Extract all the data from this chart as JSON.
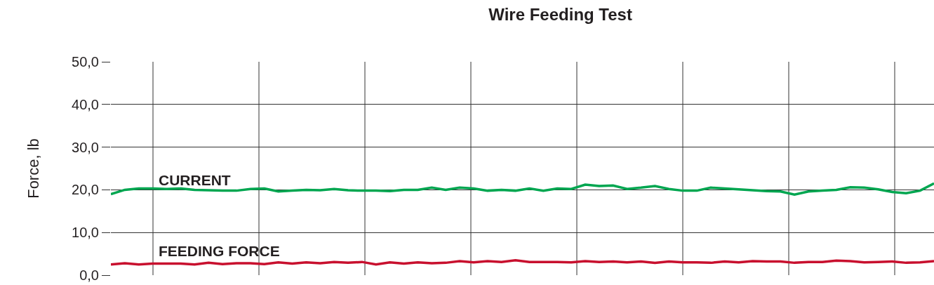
{
  "chart_data": {
    "type": "line",
    "title": "Wire Feeding Test",
    "ylabel": "Force, lb",
    "categories": [
      null,
      null,
      null,
      null,
      null,
      null,
      null,
      null,
      null,
      null,
      null,
      null,
      null,
      null,
      null,
      null,
      null,
      null,
      null,
      null,
      null,
      null,
      null,
      null,
      null,
      null,
      null,
      null,
      null,
      null,
      null,
      null,
      null,
      null,
      null,
      null,
      null,
      null,
      null,
      null,
      null,
      null,
      null,
      null,
      null,
      null,
      null,
      null,
      null,
      null,
      null,
      null,
      null,
      null,
      null,
      null,
      null,
      null,
      null,
      null
    ],
    "series": [
      {
        "name": "CURRENT",
        "color": "#00a650",
        "values": [
          19.0,
          20.0,
          20.3,
          20.3,
          20.2,
          20.3,
          20.0,
          19.9,
          19.8,
          19.8,
          20.2,
          20.3,
          19.6,
          19.8,
          20.0,
          19.9,
          20.2,
          19.9,
          19.8,
          19.8,
          19.7,
          20.0,
          20.0,
          20.5,
          20.0,
          20.5,
          20.3,
          19.8,
          20.0,
          19.8,
          20.3,
          19.8,
          20.3,
          20.2,
          21.2,
          20.9,
          21.0,
          20.2,
          20.5,
          20.9,
          20.2,
          19.8,
          19.8,
          20.5,
          20.3,
          20.1,
          19.9,
          19.7,
          19.6,
          18.9,
          19.6,
          19.8,
          20.0,
          20.6,
          20.5,
          20.1,
          19.5,
          19.2,
          19.8,
          21.5
        ]
      },
      {
        "name": "FEEDING FORCE",
        "color": "#c8102e",
        "values": [
          2.5,
          2.8,
          2.5,
          2.7,
          2.7,
          2.7,
          2.5,
          2.9,
          2.6,
          2.8,
          2.8,
          2.6,
          3.0,
          2.7,
          3.0,
          2.8,
          3.1,
          2.9,
          3.1,
          2.5,
          3.0,
          2.7,
          3.0,
          2.8,
          2.9,
          3.3,
          3.0,
          3.3,
          3.1,
          3.5,
          3.1,
          3.1,
          3.1,
          3.0,
          3.3,
          3.1,
          3.2,
          3.0,
          3.2,
          2.9,
          3.2,
          3.0,
          3.0,
          2.9,
          3.2,
          3.0,
          3.3,
          3.2,
          3.2,
          2.9,
          3.1,
          3.1,
          3.4,
          3.3,
          3.0,
          3.1,
          3.2,
          2.9,
          3.0,
          3.3
        ]
      }
    ],
    "ylim": [
      0,
      50
    ],
    "yticks": [
      {
        "value": 0,
        "label": "0,0"
      },
      {
        "value": 10,
        "label": "10,0"
      },
      {
        "value": 20,
        "label": "20,0"
      },
      {
        "value": 30,
        "label": "30,0"
      },
      {
        "value": 40,
        "label": "40,0"
      },
      {
        "value": 50,
        "label": "50,0"
      }
    ],
    "tick_labels": "y",
    "grid": true,
    "legend": false,
    "marker": "none",
    "line_style": "solid"
  }
}
